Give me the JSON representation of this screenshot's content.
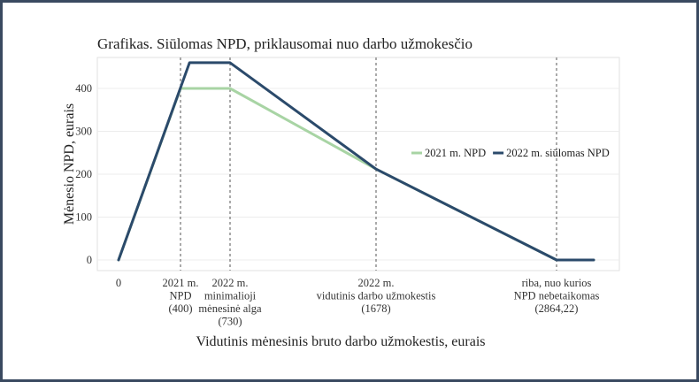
{
  "chart_data": {
    "type": "line",
    "title": "Grafikas. Siūlomas NPD, priklausomai nuo darbo užmokesčio",
    "xlabel": "Vidutinis mėnesinis bruto darbo užmokestis, eurais",
    "ylabel": "Mėnesio NPD, eurais",
    "ylim": [
      0,
      480
    ],
    "yticks": [
      0,
      100,
      200,
      300,
      400
    ],
    "grid": true,
    "legend": "right",
    "x_tick_labels": [
      {
        "lines": [
          "0"
        ]
      },
      {
        "lines": [
          "2021 m.",
          "NPD",
          "(400)"
        ]
      },
      {
        "lines": [
          "2022 m.",
          "minimalioji",
          "mėnesinė alga",
          "(730)"
        ]
      },
      {
        "lines": [
          "2022 m.",
          "vidutinis darbo užmokestis",
          "(1678)"
        ]
      },
      {
        "lines": [
          "riba, nuo kurios",
          "NPD nebetaikomas",
          "(2864,22)"
        ]
      }
    ],
    "series": [
      {
        "name": "2021 m. NPD",
        "color": "#a8d4a4",
        "points": [
          [
            0,
            0
          ],
          [
            400,
            400
          ],
          [
            730,
            400
          ],
          [
            1678,
            212
          ],
          [
            2864.22,
            0
          ],
          [
            3100,
            0
          ]
        ]
      },
      {
        "name": "2022 m. siūlomas NPD",
        "color": "#2b4a6b",
        "points": [
          [
            0,
            0
          ],
          [
            460,
            460
          ],
          [
            730,
            460
          ],
          [
            1678,
            212
          ],
          [
            2864.22,
            0
          ],
          [
            3100,
            0
          ]
        ]
      }
    ]
  }
}
